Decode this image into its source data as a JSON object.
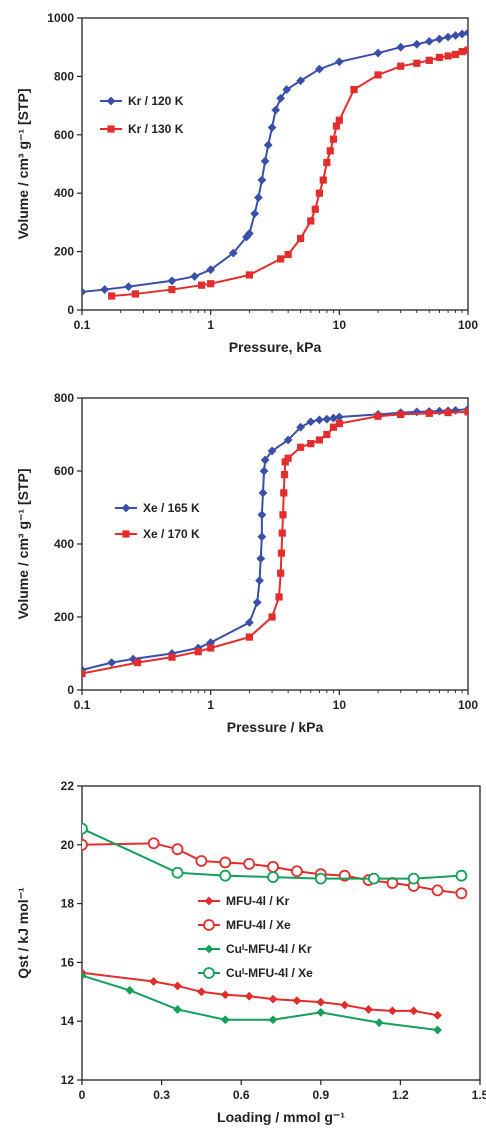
{
  "chart_data": [
    {
      "type": "line",
      "xscale": "log",
      "xlim": [
        0.1,
        100
      ],
      "ylim": [
        0,
        1000
      ],
      "xticks": [
        "0.1",
        "1",
        "10",
        "100"
      ],
      "yticks": [
        "0",
        "200",
        "400",
        "600",
        "800",
        "1000"
      ],
      "xlabel": "Pressure, kPa",
      "ylabel": "Volume / cm³ g⁻¹ [STP]",
      "grid": false,
      "legend_position": "upper-left",
      "series": [
        {
          "name": "Kr / 120 K",
          "color": "#3a4fa8",
          "marker": "diamond",
          "x": [
            0.1,
            0.15,
            0.23,
            0.5,
            0.75,
            1.0,
            1.5,
            1.9,
            2.0,
            2.2,
            2.35,
            2.5,
            2.65,
            2.8,
            3.0,
            3.2,
            3.5,
            3.9,
            5.0,
            7.0,
            10,
            20,
            30,
            40,
            50,
            60,
            70,
            80,
            90,
            100
          ],
          "y": [
            62,
            70,
            80,
            100,
            115,
            138,
            195,
            250,
            262,
            330,
            385,
            445,
            510,
            565,
            625,
            685,
            725,
            755,
            785,
            825,
            850,
            880,
            900,
            910,
            920,
            928,
            935,
            940,
            945,
            950
          ]
        },
        {
          "name": "Kr / 130 K",
          "color": "#e32d2d",
          "marker": "square",
          "x": [
            0.17,
            0.26,
            0.5,
            0.85,
            1.0,
            2.0,
            3.5,
            4.0,
            5.0,
            6.0,
            6.5,
            7.0,
            7.5,
            8.0,
            8.5,
            9.0,
            9.5,
            10,
            13,
            20,
            30,
            40,
            50,
            60,
            70,
            80,
            90,
            100
          ],
          "y": [
            48,
            55,
            70,
            85,
            90,
            120,
            175,
            190,
            245,
            305,
            345,
            400,
            445,
            505,
            545,
            585,
            630,
            650,
            755,
            805,
            835,
            845,
            855,
            865,
            870,
            875,
            885,
            890
          ]
        }
      ]
    },
    {
      "type": "line",
      "xscale": "log",
      "xlim": [
        0.1,
        100
      ],
      "ylim": [
        0,
        800
      ],
      "xticks": [
        "0.1",
        "1",
        "10",
        "100"
      ],
      "yticks": [
        "0",
        "200",
        "400",
        "600",
        "800"
      ],
      "xlabel": "Pressure / kPa",
      "ylabel": "Volume / cm³ g⁻¹ [STP]",
      "grid": false,
      "legend_position": "middle-left",
      "series": [
        {
          "name": "Xe / 165 K",
          "color": "#3a4fa8",
          "marker": "diamond",
          "x": [
            0.1,
            0.17,
            0.25,
            0.5,
            0.8,
            1.0,
            2.0,
            2.3,
            2.4,
            2.45,
            2.5,
            2.5,
            2.55,
            2.6,
            2.65,
            3.0,
            4.0,
            5.0,
            6.0,
            7.0,
            8.0,
            9.0,
            10,
            20,
            30,
            40,
            50,
            60,
            70,
            80,
            100
          ],
          "y": [
            55,
            75,
            85,
            100,
            115,
            130,
            185,
            240,
            300,
            360,
            420,
            480,
            540,
            600,
            630,
            655,
            685,
            720,
            735,
            740,
            742,
            745,
            748,
            755,
            760,
            762,
            763,
            764,
            765,
            766,
            770
          ]
        },
        {
          "name": "Xe / 170 K",
          "color": "#e32d2d",
          "marker": "square",
          "x": [
            0.1,
            0.27,
            0.5,
            0.8,
            1.0,
            2.0,
            3.0,
            3.4,
            3.5,
            3.55,
            3.6,
            3.65,
            3.7,
            3.75,
            3.8,
            4.0,
            5.0,
            6.0,
            7.0,
            8.0,
            9.0,
            10,
            20,
            30,
            50,
            70,
            100
          ],
          "y": [
            45,
            75,
            90,
            105,
            115,
            145,
            200,
            255,
            320,
            375,
            430,
            480,
            540,
            590,
            625,
            635,
            665,
            675,
            685,
            700,
            720,
            730,
            750,
            755,
            758,
            760,
            762
          ]
        }
      ]
    },
    {
      "type": "line",
      "xlim": [
        0,
        1.5
      ],
      "ylim": [
        12,
        22
      ],
      "xticks": [
        "0",
        "0.3",
        "0.6",
        "0.9",
        "1.2",
        "1.5"
      ],
      "yticks": [
        "12",
        "14",
        "16",
        "18",
        "20",
        "22"
      ],
      "xlabel": "Loading / mmol g⁻¹",
      "ylabel": "Qst / kJ mol⁻¹",
      "grid": false,
      "legend_position": "middle-right",
      "series": [
        {
          "name": "MFU-4l / Kr",
          "color": "#e32d2d",
          "marker": "diamond-filled",
          "x": [
            0,
            0.27,
            0.36,
            0.45,
            0.54,
            0.63,
            0.72,
            0.81,
            0.9,
            0.99,
            1.08,
            1.17,
            1.25,
            1.34
          ],
          "y": [
            15.65,
            15.35,
            15.2,
            15.0,
            14.9,
            14.85,
            14.75,
            14.7,
            14.65,
            14.55,
            14.4,
            14.35,
            14.35,
            14.2
          ]
        },
        {
          "name": "MFU-4l / Xe",
          "color": "#e32d2d",
          "marker": "circle-open",
          "x": [
            0,
            0.27,
            0.36,
            0.45,
            0.54,
            0.63,
            0.72,
            0.81,
            0.9,
            0.99,
            1.08,
            1.17,
            1.25,
            1.34,
            1.43
          ],
          "y": [
            20.0,
            20.05,
            19.85,
            19.45,
            19.4,
            19.35,
            19.25,
            19.1,
            19.0,
            18.95,
            18.8,
            18.7,
            18.6,
            18.45,
            18.35
          ]
        },
        {
          "name": "Cuᴵ-MFU-4l / Kr",
          "color": "#14a05a",
          "marker": "diamond-filled",
          "x": [
            0,
            0.18,
            0.36,
            0.54,
            0.72,
            0.9,
            1.12,
            1.34
          ],
          "y": [
            15.55,
            15.05,
            14.4,
            14.05,
            14.05,
            14.3,
            13.95,
            13.7
          ]
        },
        {
          "name": "Cuᴵ-MFU-4l / Xe",
          "color": "#14a05a",
          "marker": "circle-open",
          "x": [
            0,
            0.36,
            0.54,
            0.72,
            0.9,
            1.1,
            1.25,
            1.43
          ],
          "y": [
            20.55,
            19.05,
            18.95,
            18.9,
            18.85,
            18.85,
            18.85,
            18.95
          ]
        }
      ]
    }
  ]
}
